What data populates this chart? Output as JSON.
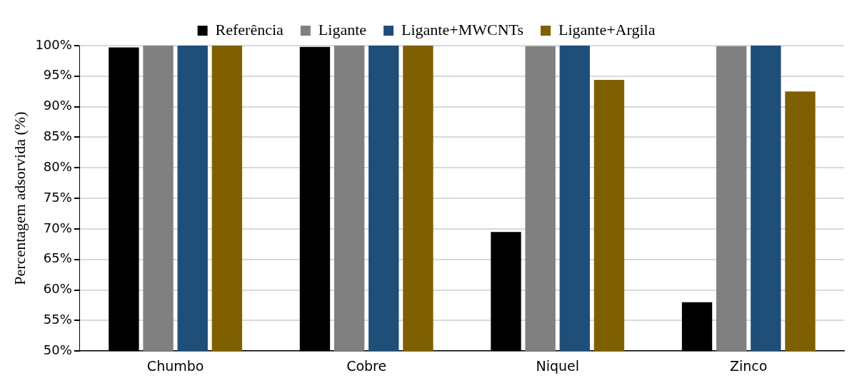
{
  "chart_data": {
    "type": "bar",
    "ylabel": "Percentagem adsorvida (%)",
    "categories": [
      "Chumbo",
      "Cobre",
      "Niquel",
      "Zinco"
    ],
    "series": [
      {
        "name": "Referência",
        "color": "#000000",
        "values": [
          99.7,
          99.8,
          69.5,
          58.0
        ]
      },
      {
        "name": "Ligante",
        "color": "#808080",
        "values": [
          100,
          100,
          99.9,
          99.9
        ]
      },
      {
        "name": "Ligante+MWCNTs",
        "color": "#1f4e79",
        "values": [
          100,
          100,
          100,
          100
        ]
      },
      {
        "name": "Ligante+Argila",
        "color": "#7f6000",
        "values": [
          100,
          100,
          94.4,
          92.5
        ]
      }
    ],
    "ylim": [
      50,
      100
    ],
    "yticks": [
      {
        "value": 50,
        "label": "50%"
      },
      {
        "value": 55,
        "label": "55%"
      },
      {
        "value": 60,
        "label": "60%"
      },
      {
        "value": 65,
        "label": "65%"
      },
      {
        "value": 70,
        "label": "70%"
      },
      {
        "value": 75,
        "label": "75%"
      },
      {
        "value": 80,
        "label": "80%"
      },
      {
        "value": 85,
        "label": "85%"
      },
      {
        "value": 90,
        "label": "90%"
      },
      {
        "value": 95,
        "label": "95%"
      },
      {
        "value": 100,
        "label": "100%"
      }
    ],
    "grid": "y",
    "legend": "top"
  }
}
